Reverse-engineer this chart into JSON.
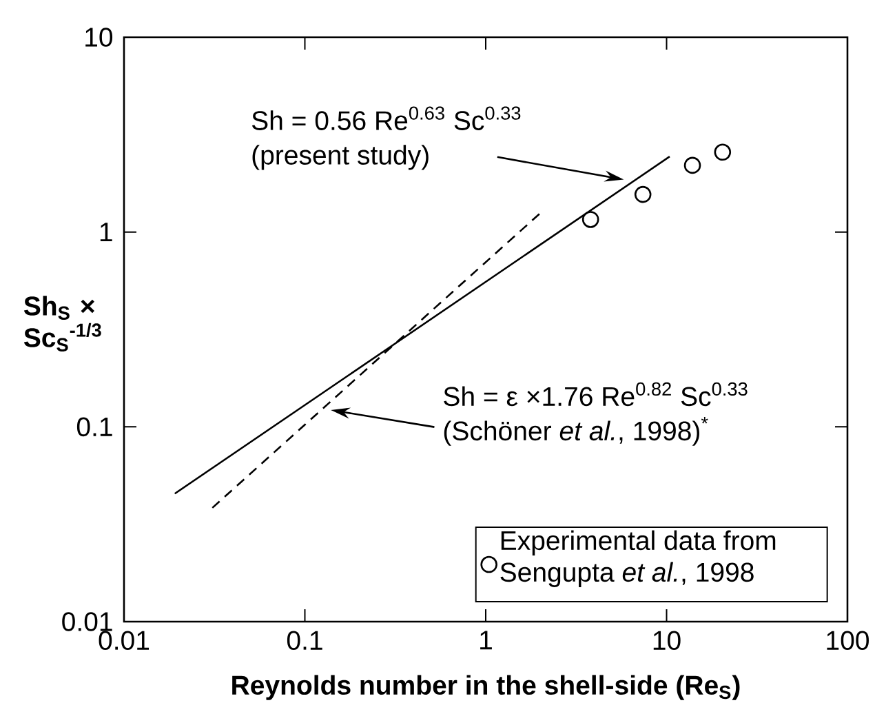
{
  "chart_data": {
    "type": "line",
    "xlabel": "Reynolds number in the shell-side (Re$_{S}$)",
    "ylabel": "Sh$_{S}$ × Sc$_{S}$$^{-1/3}$",
    "log": "xy",
    "xlim": [
      0.01,
      100
    ],
    "ylim": [
      0.01,
      10
    ],
    "xticks": [
      0.01,
      0.1,
      1,
      10,
      100
    ],
    "yticks": [
      0.01,
      0.1,
      1,
      10
    ],
    "legend": "bottom right",
    "series": [
      {
        "type": "line",
        "x": [
          0.0191,
          10.4
        ],
        "values": [
          0.0454,
          2.44
        ],
        "color": "#000000",
        "line_style": "solid"
      },
      {
        "type": "line",
        "x": [
          0.0308,
          2.06
        ],
        "values": [
          0.0384,
          1.28
        ],
        "color": "#000000",
        "line_style": "dashed"
      },
      {
        "type": "scatter",
        "name": "Experimental data from Sengupta *et al.*, 1998",
        "x": [
          3.8,
          7.4,
          13.9,
          20.4
        ],
        "values": [
          1.16,
          1.56,
          2.2,
          2.57
        ],
        "color": "#000000",
        "marker": "circle"
      }
    ],
    "annotations": [
      {
        "text": "Sh = 0.56 Re$^{0.63}$ Sc$^{0.33}$",
        "x": 5.8,
        "y": 1.86
      },
      "(present study)",
      {
        "text": "Sh = ε ×1.76 Re$^{0.82}$ Sc$^{0.33}$",
        "x": 0.139,
        "y": 0.122
      },
      "(Schöner *et al.*, 1998)$^{*}$"
    ]
  }
}
